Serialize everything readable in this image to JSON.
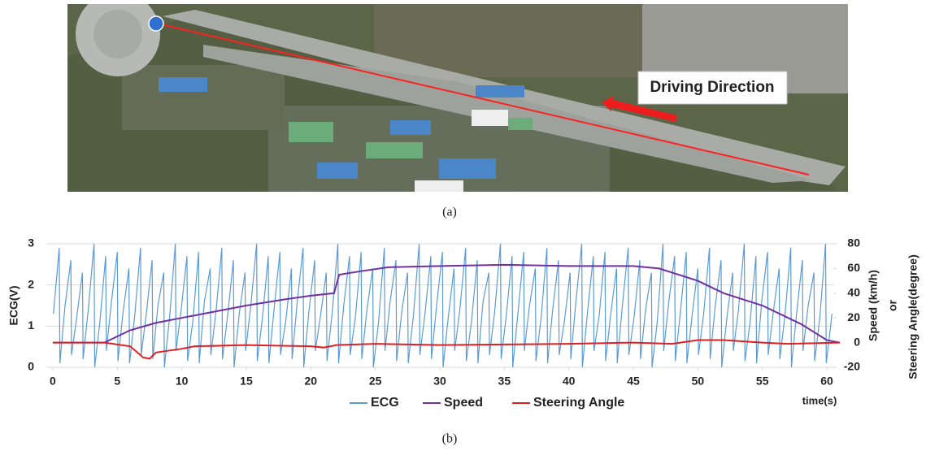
{
  "figure": {
    "annotation": "Driving Direction",
    "caption_a": "(a)",
    "caption_b": "(b)"
  },
  "chart_data": {
    "type": "line",
    "ylabel": "ECG(V)",
    "y2label": "Speed (km/h)",
    "y2label_or": "or",
    "y2label_2": "Steering Angle(degree)",
    "xlabel": "time(s)",
    "xlim": [
      -0.5,
      60.5
    ],
    "xticks": [
      0,
      5,
      10,
      15,
      20,
      25,
      30,
      35,
      40,
      45,
      50,
      55,
      60
    ],
    "ylim": [
      0,
      3
    ],
    "yticks": [
      0,
      1,
      2,
      3
    ],
    "y2lim": [
      -20,
      80
    ],
    "y2ticks": [
      -20,
      0,
      20,
      40,
      60,
      80
    ],
    "grid": true,
    "legend": "bottom",
    "series": [
      {
        "name": "ECG",
        "color": "#5b9bd5",
        "axis": "y",
        "x": [
          0.05,
          0.5,
          0.55,
          0.95,
          1.4,
          1.45,
          1.85,
          2.3,
          2.35,
          2.75,
          3.2,
          3.25,
          3.65,
          4.1,
          4.15,
          4.55,
          5,
          5.05,
          5.45,
          5.9,
          5.95,
          6.35,
          6.8,
          6.85,
          7.25,
          7.7,
          7.75,
          8.15,
          8.6,
          8.65,
          9.05,
          9.5,
          9.55,
          9.95,
          10.4,
          10.45,
          10.85,
          11.3,
          11.35,
          11.75,
          12.2,
          12.25,
          12.65,
          13.1,
          13.15,
          13.55,
          14,
          14.05,
          14.45,
          14.9,
          14.95,
          15.35,
          15.8,
          15.85,
          16.25,
          16.7,
          16.75,
          17.15,
          17.6,
          17.65,
          18.05,
          18.5,
          18.55,
          18.95,
          19.4,
          19.45,
          19.85,
          20.3,
          20.35,
          20.75,
          21.2,
          21.25,
          21.65,
          22.1,
          22.15,
          22.55,
          23,
          23.05,
          23.45,
          23.9,
          23.95,
          24.35,
          24.8,
          24.85,
          25.25,
          25.7,
          25.75,
          26.15,
          26.6,
          26.65,
          27.05,
          27.5,
          27.55,
          27.95,
          28.4,
          28.45,
          28.85,
          29.3,
          29.35,
          29.75,
          30.2,
          30.25,
          30.65,
          31.1,
          31.15,
          31.55,
          32,
          32.05,
          32.45,
          32.9,
          32.95,
          33.35,
          33.8,
          33.85,
          34.25,
          34.7,
          34.75,
          35.15,
          35.6,
          35.65,
          36.05,
          36.5,
          36.55,
          36.95,
          37.4,
          37.45,
          37.85,
          38.3,
          38.35,
          38.75,
          39.2,
          39.25,
          39.65,
          40.1,
          40.15,
          40.55,
          41,
          41.05,
          41.45,
          41.9,
          41.95,
          42.35,
          42.8,
          42.85,
          43.25,
          43.7,
          43.75,
          44.15,
          44.6,
          44.65,
          45.05,
          45.5,
          45.55,
          45.95,
          46.4,
          46.45,
          46.85,
          47.3,
          47.35,
          47.75,
          48.2,
          48.25,
          48.65,
          49.1,
          49.15,
          49.55,
          50,
          50.05,
          50.45,
          50.9,
          50.95,
          51.35,
          51.8,
          51.85,
          52.25,
          52.7,
          52.75,
          53.15,
          53.6,
          53.65,
          54.05,
          54.5,
          54.55,
          54.95,
          55.4,
          55.45,
          55.85,
          56.3,
          56.35,
          56.75,
          57.2,
          57.25,
          57.65,
          58.1,
          58.15,
          58.55,
          59,
          59.05,
          59.45,
          59.9,
          59.95,
          60.4
        ],
        "values": [
          1.3,
          2.9,
          0.1,
          1.5,
          2.6,
          0.3,
          1.2,
          2.3,
          0.2,
          1.4,
          3.0,
          0.0,
          1.1,
          2.7,
          0.4,
          1.6,
          2.8,
          0.15,
          1.35,
          2.4,
          0.1,
          1.25,
          2.9,
          0.3,
          1.3,
          2.6,
          0.2,
          1.5,
          2.3,
          0.0,
          1.2,
          3.0,
          0.4,
          1.4,
          2.7,
          0.15,
          1.1,
          2.8,
          0.1,
          1.6,
          2.4,
          0.3,
          1.35,
          2.9,
          0.2,
          1.25,
          2.6,
          0.0,
          1.3,
          2.3,
          0.4,
          1.5,
          3.0,
          0.15,
          1.2,
          2.7,
          0.1,
          1.4,
          2.8,
          0.3,
          1.1,
          2.4,
          0.2,
          1.6,
          2.9,
          0.0,
          1.35,
          2.6,
          0.4,
          1.25,
          2.3,
          0.15,
          1.3,
          3.0,
          0.1,
          1.5,
          2.7,
          0.3,
          1.2,
          2.8,
          0.2,
          1.4,
          2.4,
          0.0,
          1.1,
          2.9,
          0.4,
          1.6,
          2.6,
          0.15,
          1.35,
          2.3,
          0.1,
          1.25,
          3.0,
          0.3,
          1.3,
          2.7,
          0.2,
          1.5,
          2.8,
          0.0,
          1.2,
          2.4,
          0.4,
          1.4,
          2.9,
          0.15,
          1.1,
          2.6,
          0.1,
          1.6,
          2.3,
          0.3,
          1.35,
          3.0,
          0.2,
          1.25,
          2.7,
          0.0,
          1.3,
          2.8,
          0.4,
          1.5,
          2.4,
          0.15,
          1.2,
          2.9,
          0.1,
          1.4,
          2.6,
          0.3,
          1.1,
          2.3,
          0.2,
          1.6,
          3.0,
          0.0,
          1.35,
          2.7,
          0.4,
          1.25,
          2.8,
          0.15,
          1.3,
          2.4,
          0.1,
          1.5,
          2.9,
          0.3,
          1.2,
          2.6,
          0.2,
          1.4,
          2.3,
          0.0,
          1.1,
          3.0,
          0.4,
          1.6,
          2.7,
          0.15,
          1.35,
          2.8,
          0.1,
          1.25,
          2.4,
          0.3,
          1.3,
          2.9,
          0.2,
          1.5,
          2.6,
          0.0,
          1.2,
          2.3,
          0.4,
          1.4,
          3.0,
          0.15,
          1.1,
          2.7,
          0.1,
          1.6,
          2.8,
          0.3,
          1.35,
          2.4,
          0.2,
          1.25,
          2.9,
          0.0,
          1.3,
          2.6,
          0.4,
          1.5,
          2.3,
          0.15,
          1.2,
          3.0,
          0.1,
          1.3
        ]
      },
      {
        "name": "Speed",
        "color": "#7030a0",
        "axis": "y2",
        "x": [
          0,
          4,
          5,
          6,
          8,
          10,
          12,
          15,
          18,
          20,
          21.8,
          22.2,
          24,
          26,
          30,
          35,
          40,
          45,
          47,
          50,
          52,
          55,
          58,
          60,
          61
        ],
        "values": [
          0,
          0,
          5,
          10,
          16,
          20,
          24,
          30,
          35,
          38,
          40,
          55,
          58,
          61,
          62,
          63,
          62,
          62,
          60,
          50,
          40,
          30,
          15,
          2,
          0
        ]
      },
      {
        "name": "Steering Angle",
        "color": "#e02020",
        "axis": "y2",
        "x": [
          0,
          4,
          6,
          7,
          7.5,
          8,
          10,
          11,
          15,
          20,
          21,
          22,
          25,
          30,
          40,
          45,
          48,
          50,
          52,
          55,
          57,
          61
        ],
        "values": [
          0,
          0,
          -3,
          -12,
          -13,
          -8,
          -5,
          -3,
          -2,
          -3,
          -4,
          -2,
          -1,
          -2,
          -1,
          0,
          -1,
          2,
          2,
          0,
          -1,
          0
        ]
      }
    ]
  }
}
